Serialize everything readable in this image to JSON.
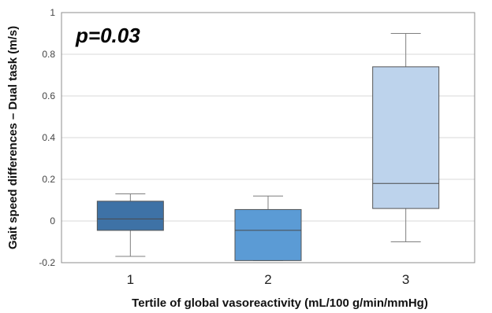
{
  "chart_data": {
    "type": "box",
    "annotation": "p=0.03",
    "xlabel": "Tertile of global vasoreactivity  (mL/100 g/min/mmHg)",
    "ylabel": "Gait speed differences – Dual task (m/s)",
    "ylim": [
      -0.2,
      1.0
    ],
    "yticks": [
      -0.2,
      0,
      0.2,
      0.4,
      0.6,
      0.8,
      1
    ],
    "ytick_labels": [
      "-0.2",
      "0",
      "0.2",
      "0.4",
      "0.6",
      "0.8",
      "1"
    ],
    "grid": true,
    "categories": [
      "1",
      "2",
      "3"
    ],
    "boxes": [
      {
        "category": "1",
        "whisker_low": -0.17,
        "q1": -0.045,
        "median": 0.01,
        "q3": 0.095,
        "whisker_high": 0.13,
        "color": "#3e72a6"
      },
      {
        "category": "2",
        "whisker_low": -0.19,
        "q1": -0.19,
        "median": -0.045,
        "q3": 0.055,
        "whisker_high": 0.12,
        "color": "#5b9bd5"
      },
      {
        "category": "3",
        "whisker_low": -0.1,
        "q1": 0.06,
        "median": 0.18,
        "q3": 0.74,
        "whisker_high": 0.9,
        "color": "#bdd3ec"
      }
    ]
  }
}
